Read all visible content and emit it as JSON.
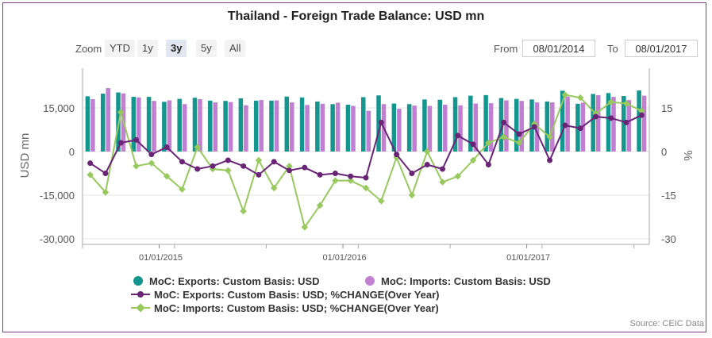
{
  "title": "Thailand - Foreign Trade Balance: USD mn",
  "zoom": {
    "label": "Zoom",
    "buttons": [
      "YTD",
      "1y",
      "3y",
      "5y",
      "All"
    ],
    "active": "3y"
  },
  "range": {
    "from_label": "From",
    "from_value": "08/01/2014",
    "to_label": "To",
    "to_value": "08/01/2017"
  },
  "source": "Source: CEIC Data",
  "colors": {
    "exports_bar": "#14958e",
    "imports_bar": "#c07fd1",
    "exports_change_line": "#6a2476",
    "imports_change_line": "#98c95e"
  },
  "chart_data": {
    "type": "bar+line",
    "title": "Thailand - Foreign Trade Balance: USD mn",
    "x_ticks": [
      "01/01/2015",
      "01/01/2016",
      "01/01/2017"
    ],
    "y_left": {
      "label": "USD mn",
      "ticks": [
        "15,000",
        "0",
        "-15,000",
        "-30,000"
      ],
      "range": [
        -30000,
        30000
      ]
    },
    "y_right": {
      "label": "%",
      "ticks": [
        "15",
        "0",
        "-15",
        "-30"
      ],
      "range": [
        -30,
        30
      ]
    },
    "months": [
      "2014-08",
      "2014-09",
      "2014-10",
      "2014-11",
      "2014-12",
      "2015-01",
      "2015-02",
      "2015-03",
      "2015-04",
      "2015-05",
      "2015-06",
      "2015-07",
      "2015-08",
      "2015-09",
      "2015-10",
      "2015-11",
      "2015-12",
      "2016-01",
      "2016-02",
      "2016-03",
      "2016-04",
      "2016-05",
      "2016-06",
      "2016-07",
      "2016-08",
      "2016-09",
      "2016-10",
      "2016-11",
      "2016-12",
      "2017-01",
      "2017-02",
      "2017-03",
      "2017-04",
      "2017-05",
      "2017-06",
      "2017-07",
      "2017-08"
    ],
    "series": [
      {
        "name": "MoC: Exports: Custom Basis: USD",
        "type": "bar",
        "axis": "left",
        "values": [
          19000,
          19900,
          20300,
          18800,
          18800,
          17100,
          18100,
          18500,
          17500,
          17400,
          18300,
          17500,
          17500,
          18900,
          18600,
          17200,
          16300,
          16100,
          18700,
          19300,
          16500,
          16300,
          17900,
          17800,
          18700,
          19200,
          19400,
          18400,
          18100,
          17900,
          17200,
          20900,
          16400,
          19800,
          20100,
          19100,
          21000
        ]
      },
      {
        "name": "MoC: Imports: Custom Basis: USD",
        "type": "bar",
        "axis": "left",
        "values": [
          18000,
          21800,
          20000,
          18600,
          17400,
          17600,
          16300,
          18000,
          16900,
          17000,
          15900,
          17700,
          17600,
          16900,
          16000,
          16400,
          16800,
          15700,
          14000,
          16300,
          14700,
          15800,
          15700,
          16100,
          15900,
          16500,
          16600,
          17600,
          17400,
          16900,
          16900,
          18900,
          16800,
          19400,
          18800,
          17700,
          19200
        ]
      },
      {
        "name": "MoC: Exports: Custom Basis: USD; %CHANGE(Over Year)",
        "type": "line",
        "axis": "right",
        "values": [
          -4.0,
          -7.5,
          3.0,
          4.0,
          -1.0,
          1.5,
          -3.5,
          -6.0,
          -5.0,
          -3.0,
          -5.0,
          -8.0,
          -3.5,
          -6.5,
          -5.5,
          -8.0,
          -7.5,
          -8.5,
          -9.0,
          10.0,
          -1.0,
          -7.5,
          -4.5,
          -6.0,
          5.5,
          2.5,
          -4.5,
          10.0,
          6.0,
          8.5,
          -3.0,
          9.0,
          8.0,
          12.0,
          11.5,
          10.0,
          12.5
        ]
      },
      {
        "name": "MoC: Imports: Custom Basis: USD; %CHANGE(Over Year)",
        "type": "line",
        "axis": "right",
        "values": [
          -8.0,
          -14.0,
          13.5,
          -5.0,
          -4.0,
          -8.5,
          -13.0,
          1.5,
          -6.0,
          -6.5,
          -20.5,
          -3.0,
          -12.5,
          -5.0,
          -26.0,
          -18.5,
          -10.0,
          -10.0,
          -12.5,
          -17.0,
          -2.0,
          -15.0,
          0.0,
          -10.5,
          -8.5,
          -3.0,
          3.0,
          5.0,
          3.0,
          9.5,
          5.0,
          19.5,
          18.5,
          13.0,
          17.0,
          16.5,
          14.0
        ]
      }
    ]
  },
  "legend": [
    {
      "label": "MoC: Exports: Custom Basis: USD"
    },
    {
      "label": "MoC: Imports: Custom Basis: USD"
    },
    {
      "label": "MoC: Exports: Custom Basis: USD; %CHANGE(Over Year)"
    },
    {
      "label": "MoC: Imports: Custom Basis: USD; %CHANGE(Over Year)"
    }
  ]
}
